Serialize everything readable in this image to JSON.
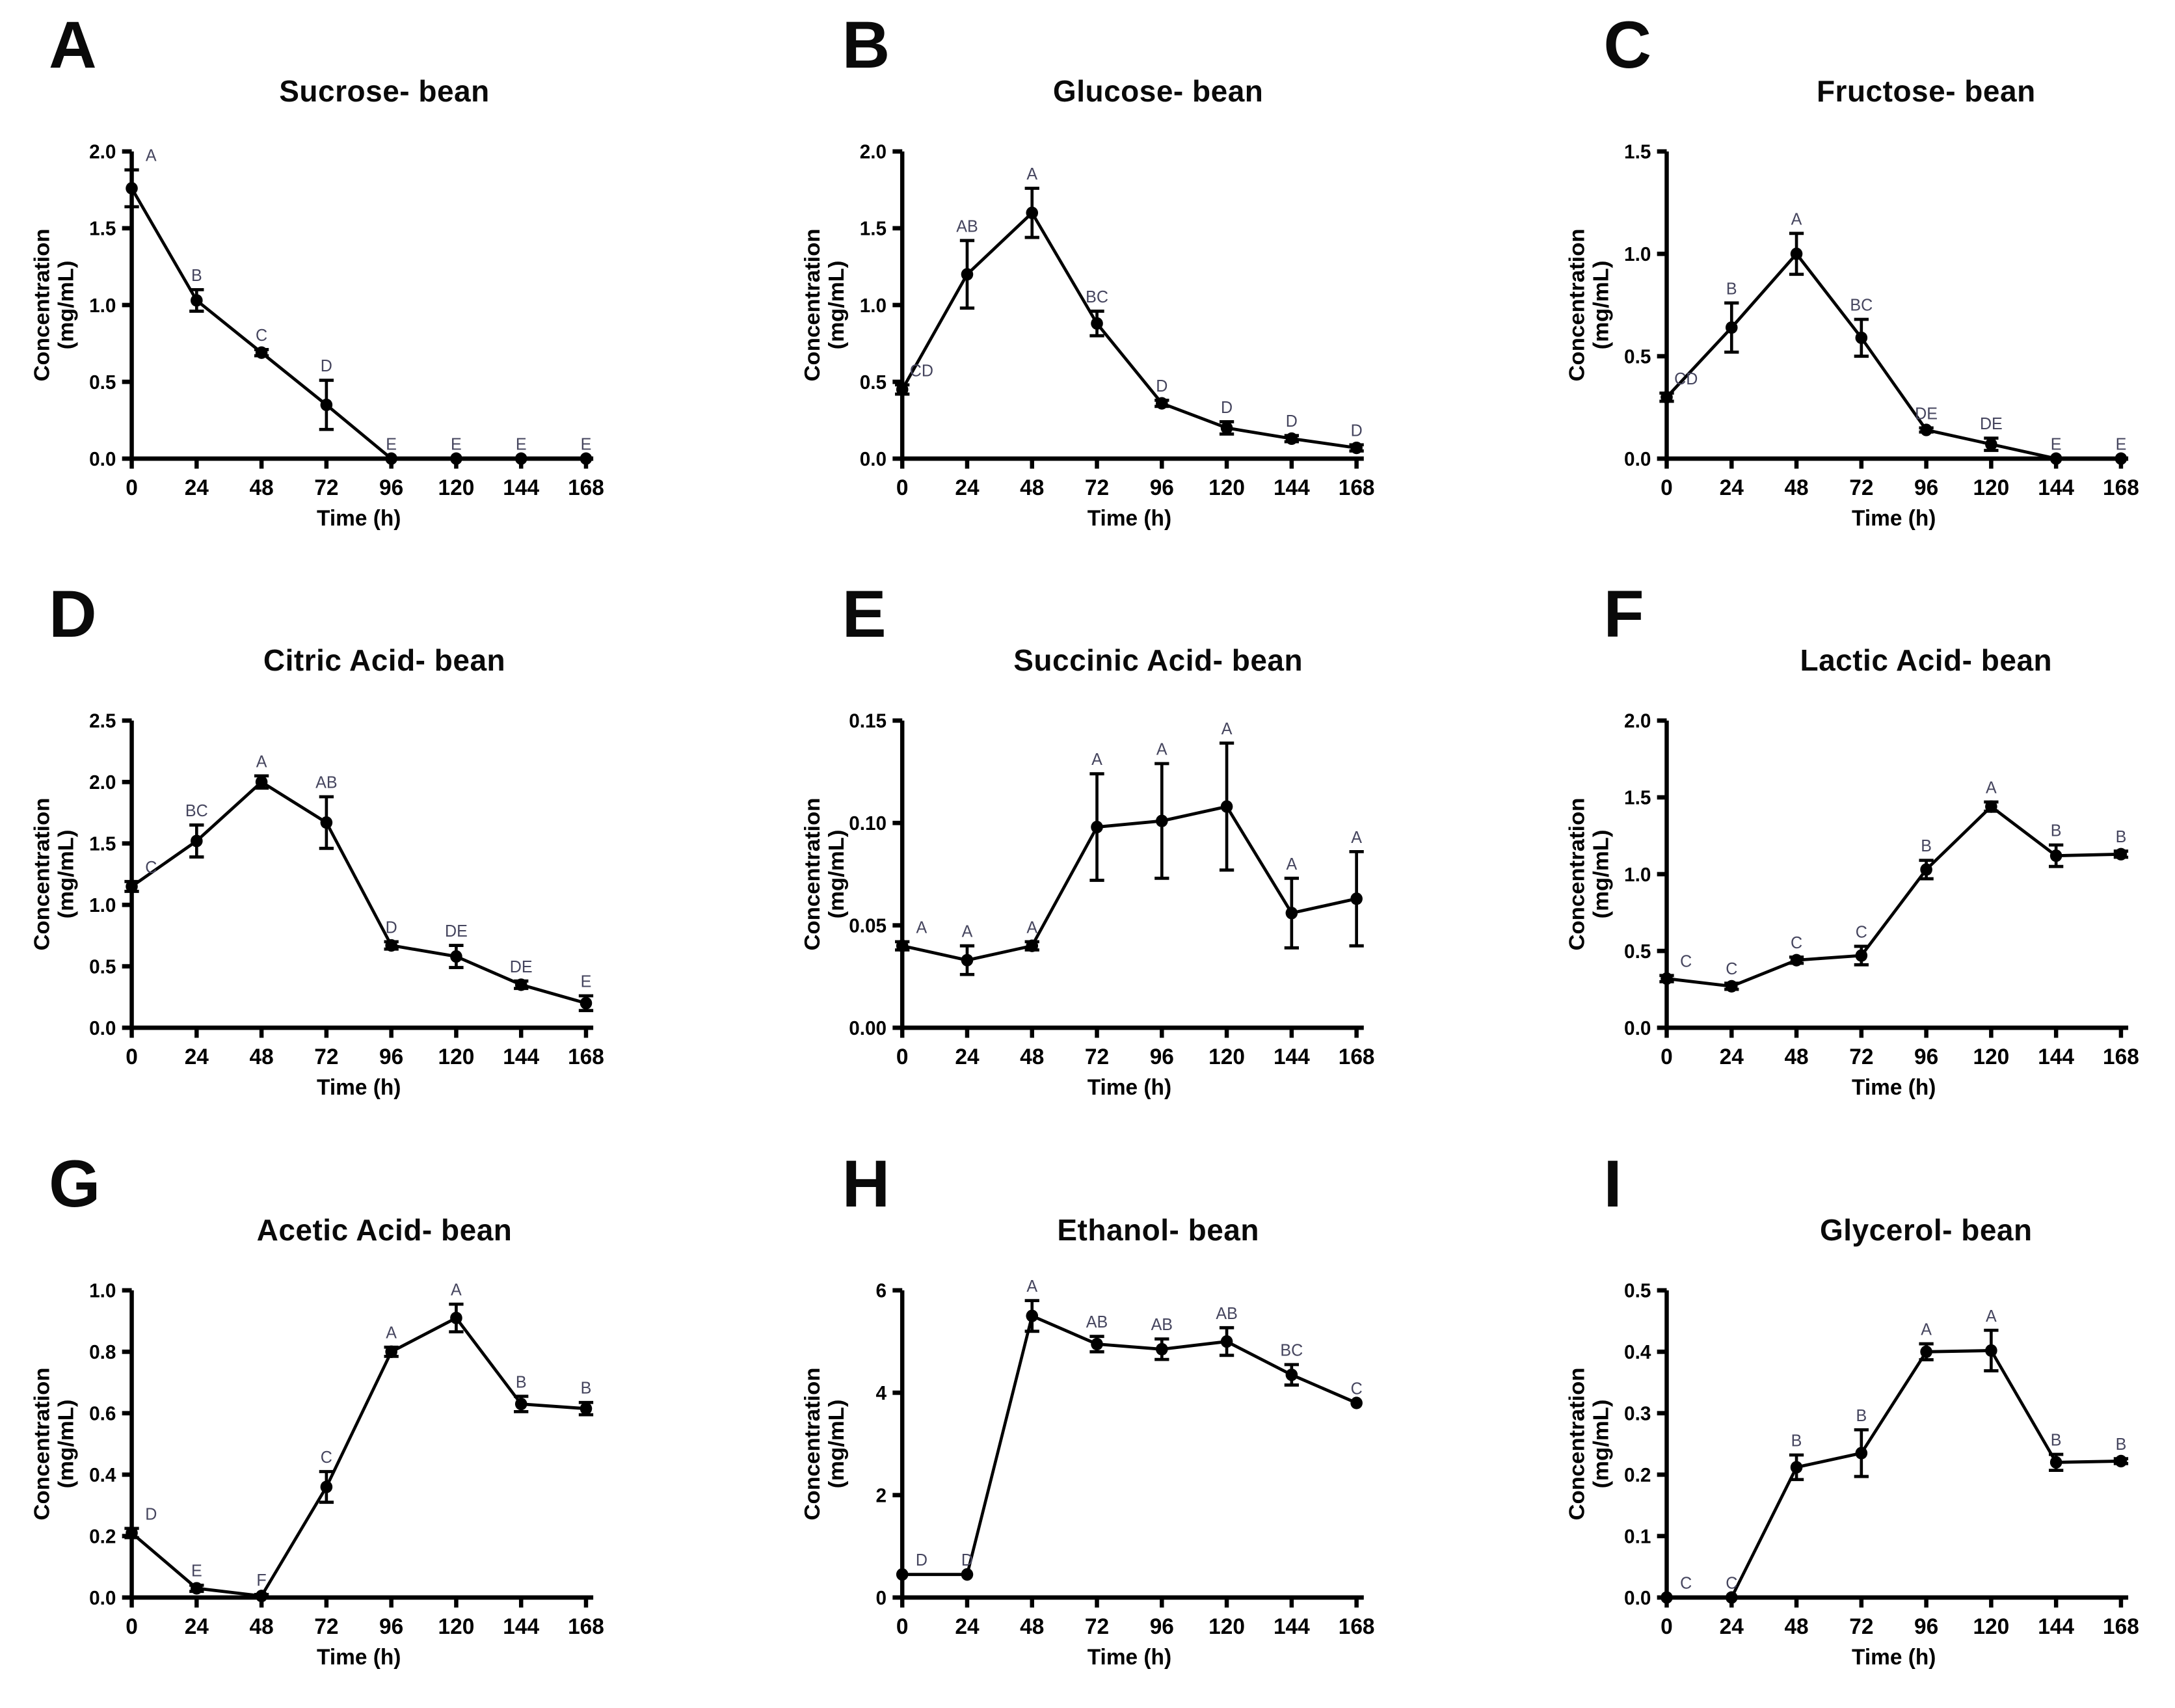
{
  "figure": {
    "background": "#ffffff",
    "axis_color": "#000000",
    "line_color": "#000000",
    "marker_color": "#000000",
    "sig_label_color": "#45455e",
    "xlabel": "Time (h)",
    "ylabel_line1": "Concentration",
    "ylabel_line2": "(mg/mL)"
  },
  "chart_data": [
    {
      "type": "line",
      "panel_letter": "A",
      "title": "Sucrose- bean",
      "xlabel": "Time (h)",
      "ylabel": "Concentration (mg/mL)",
      "x": [
        0,
        24,
        48,
        72,
        96,
        120,
        144,
        168
      ],
      "xtick_labels": [
        "0",
        "24",
        "48",
        "72",
        "96",
        "120",
        "144",
        "168"
      ],
      "values": [
        1.76,
        1.03,
        0.69,
        0.35,
        0.0,
        0.0,
        0.0,
        0.0
      ],
      "errors": [
        0.12,
        0.07,
        0.02,
        0.16,
        0.0,
        0.0,
        0.0,
        0.0
      ],
      "point_labels": [
        "A",
        "B",
        "C",
        "D",
        "E",
        "E",
        "E",
        "E"
      ],
      "ylim": [
        0,
        2.0
      ],
      "yticks": [
        0,
        0.5,
        1.0,
        1.5,
        2.0
      ],
      "ytick_labels": [
        "0.0",
        "0.5",
        "1.0",
        "1.5",
        "2.0"
      ]
    },
    {
      "type": "line",
      "panel_letter": "B",
      "title": "Glucose- bean",
      "xlabel": "Time (h)",
      "ylabel": "Concentration (mg/mL)",
      "x": [
        0,
        24,
        48,
        72,
        96,
        120,
        144,
        168
      ],
      "xtick_labels": [
        "0",
        "24",
        "48",
        "72",
        "96",
        "120",
        "144",
        "168"
      ],
      "values": [
        0.45,
        1.2,
        1.6,
        0.88,
        0.36,
        0.2,
        0.13,
        0.07
      ],
      "errors": [
        0.03,
        0.22,
        0.16,
        0.08,
        0.02,
        0.04,
        0.02,
        0.02
      ],
      "point_labels": [
        "CD",
        "AB",
        "A",
        "BC",
        "D",
        "D",
        "D",
        "D"
      ],
      "ylim": [
        0,
        2.0
      ],
      "yticks": [
        0,
        0.5,
        1.0,
        1.5,
        2.0
      ],
      "ytick_labels": [
        "0.0",
        "0.5",
        "1.0",
        "1.5",
        "2.0"
      ]
    },
    {
      "type": "line",
      "panel_letter": "C",
      "title": "Fructose- bean",
      "xlabel": "Time (h)",
      "ylabel": "Concentration (mg/mL)",
      "x": [
        0,
        24,
        48,
        72,
        96,
        120,
        144,
        168
      ],
      "xtick_labels": [
        "0",
        "24",
        "48",
        "72",
        "96",
        "120",
        "144",
        "168"
      ],
      "values": [
        0.3,
        0.64,
        1.0,
        0.59,
        0.14,
        0.07,
        0.0,
        0.0
      ],
      "errors": [
        0.02,
        0.12,
        0.1,
        0.09,
        0.01,
        0.03,
        0.0,
        0.0
      ],
      "point_labels": [
        "CD",
        "B",
        "A",
        "BC",
        "DE",
        "DE",
        "E",
        "E"
      ],
      "ylim": [
        0,
        1.5
      ],
      "yticks": [
        0,
        0.5,
        1.0,
        1.5
      ],
      "ytick_labels": [
        "0.0",
        "0.5",
        "1.0",
        "1.5"
      ]
    },
    {
      "type": "line",
      "panel_letter": "D",
      "title": "Citric Acid- bean",
      "xlabel": "Time (h)",
      "ylabel": "Concentration (mg/mL)",
      "x": [
        0,
        24,
        48,
        72,
        96,
        120,
        144,
        168
      ],
      "xtick_labels": [
        "0",
        "24",
        "48",
        "72",
        "96",
        "120",
        "144",
        "168"
      ],
      "values": [
        1.15,
        1.52,
        2.0,
        1.67,
        0.67,
        0.58,
        0.35,
        0.2
      ],
      "errors": [
        0.04,
        0.13,
        0.05,
        0.21,
        0.03,
        0.09,
        0.03,
        0.06
      ],
      "point_labels": [
        "C",
        "BC",
        "A",
        "AB",
        "D",
        "DE",
        "DE",
        "E"
      ],
      "ylim": [
        0,
        2.5
      ],
      "yticks": [
        0,
        0.5,
        1.0,
        1.5,
        2.0,
        2.5
      ],
      "ytick_labels": [
        "0.0",
        "0.5",
        "1.0",
        "1.5",
        "2.0",
        "2.5"
      ]
    },
    {
      "type": "line",
      "panel_letter": "E",
      "title": "Succinic Acid- bean",
      "xlabel": "Time (h)",
      "ylabel": "Concentration (mg/mL)",
      "x": [
        0,
        24,
        48,
        72,
        96,
        120,
        144,
        168
      ],
      "xtick_labels": [
        "0",
        "24",
        "48",
        "72",
        "96",
        "120",
        "144",
        "168"
      ],
      "values": [
        0.04,
        0.033,
        0.04,
        0.098,
        0.101,
        0.108,
        0.056,
        0.063
      ],
      "errors": [
        0.002,
        0.007,
        0.002,
        0.026,
        0.028,
        0.031,
        0.017,
        0.023
      ],
      "point_labels": [
        "A",
        "A",
        "A",
        "A",
        "A",
        "A",
        "A",
        "A"
      ],
      "ylim": [
        0,
        0.15
      ],
      "yticks": [
        0,
        0.05,
        0.1,
        0.15
      ],
      "ytick_labels": [
        "0.00",
        "0.05",
        "0.10",
        "0.15"
      ]
    },
    {
      "type": "line",
      "panel_letter": "F",
      "title": "Lactic Acid- bean",
      "xlabel": "Time (h)",
      "ylabel": "Concentration (mg/mL)",
      "x": [
        0,
        24,
        48,
        72,
        96,
        120,
        144,
        168
      ],
      "xtick_labels": [
        "0",
        "24",
        "48",
        "72",
        "96",
        "120",
        "144",
        "168"
      ],
      "values": [
        0.32,
        0.27,
        0.44,
        0.47,
        1.03,
        1.44,
        1.12,
        1.13
      ],
      "errors": [
        0.02,
        0.02,
        0.02,
        0.06,
        0.06,
        0.03,
        0.07,
        0.02
      ],
      "point_labels": [
        "C",
        "C",
        "C",
        "C",
        "B",
        "A",
        "B",
        "B"
      ],
      "ylim": [
        0,
        2.0
      ],
      "yticks": [
        0,
        0.5,
        1.0,
        1.5,
        2.0
      ],
      "ytick_labels": [
        "0.0",
        "0.5",
        "1.0",
        "1.5",
        "2.0"
      ]
    },
    {
      "type": "line",
      "panel_letter": "G",
      "title": "Acetic Acid- bean",
      "xlabel": "Time (h)",
      "ylabel": "Concentration (mg/mL)",
      "x": [
        0,
        24,
        48,
        72,
        96,
        120,
        144,
        168
      ],
      "xtick_labels": [
        "0",
        "24",
        "48",
        "72",
        "96",
        "120",
        "144",
        "168"
      ],
      "values": [
        0.21,
        0.03,
        0.005,
        0.36,
        0.8,
        0.91,
        0.63,
        0.615
      ],
      "errors": [
        0.015,
        0.01,
        0.005,
        0.05,
        0.015,
        0.045,
        0.025,
        0.02
      ],
      "point_labels": [
        "D",
        "E",
        "F",
        "C",
        "A",
        "A",
        "B",
        "B"
      ],
      "ylim": [
        0,
        1.0
      ],
      "yticks": [
        0,
        0.2,
        0.4,
        0.6,
        0.8,
        1.0
      ],
      "ytick_labels": [
        "0.0",
        "0.2",
        "0.4",
        "0.6",
        "0.8",
        "1.0"
      ]
    },
    {
      "type": "line",
      "panel_letter": "H",
      "title": "Ethanol- bean",
      "xlabel": "Time (h)",
      "ylabel": "Concentration (mg/mL)",
      "x": [
        0,
        24,
        48,
        72,
        96,
        120,
        144,
        168
      ],
      "xtick_labels": [
        "0",
        "24",
        "48",
        "72",
        "96",
        "120",
        "144",
        "168"
      ],
      "values": [
        0.45,
        0.45,
        5.5,
        4.95,
        4.85,
        5.0,
        4.35,
        3.8
      ],
      "errors": [
        0.0,
        0.0,
        0.3,
        0.15,
        0.2,
        0.27,
        0.2,
        0.0
      ],
      "point_labels": [
        "D",
        "D",
        "A",
        "AB",
        "AB",
        "AB",
        "BC",
        "C"
      ],
      "ylim": [
        0,
        6
      ],
      "yticks": [
        0,
        2,
        4,
        6
      ],
      "ytick_labels": [
        "0",
        "2",
        "4",
        "6"
      ]
    },
    {
      "type": "line",
      "panel_letter": "I",
      "title": "Glycerol- bean",
      "xlabel": "Time (h)",
      "ylabel": "Concentration (mg/mL)",
      "x": [
        0,
        24,
        48,
        72,
        96,
        120,
        144,
        168
      ],
      "xtick_labels": [
        "0",
        "24",
        "48",
        "72",
        "96",
        "120",
        "144",
        "168"
      ],
      "values": [
        0.0,
        0.0,
        0.212,
        0.235,
        0.4,
        0.402,
        0.22,
        0.222
      ],
      "errors": [
        0.0,
        0.0,
        0.02,
        0.038,
        0.013,
        0.033,
        0.013,
        0.004
      ],
      "point_labels": [
        "C",
        "C",
        "B",
        "B",
        "A",
        "A",
        "B",
        "B"
      ],
      "ylim": [
        0,
        0.5
      ],
      "yticks": [
        0,
        0.1,
        0.2,
        0.3,
        0.4,
        0.5
      ],
      "ytick_labels": [
        "0.0",
        "0.1",
        "0.2",
        "0.3",
        "0.4",
        "0.5"
      ]
    }
  ]
}
